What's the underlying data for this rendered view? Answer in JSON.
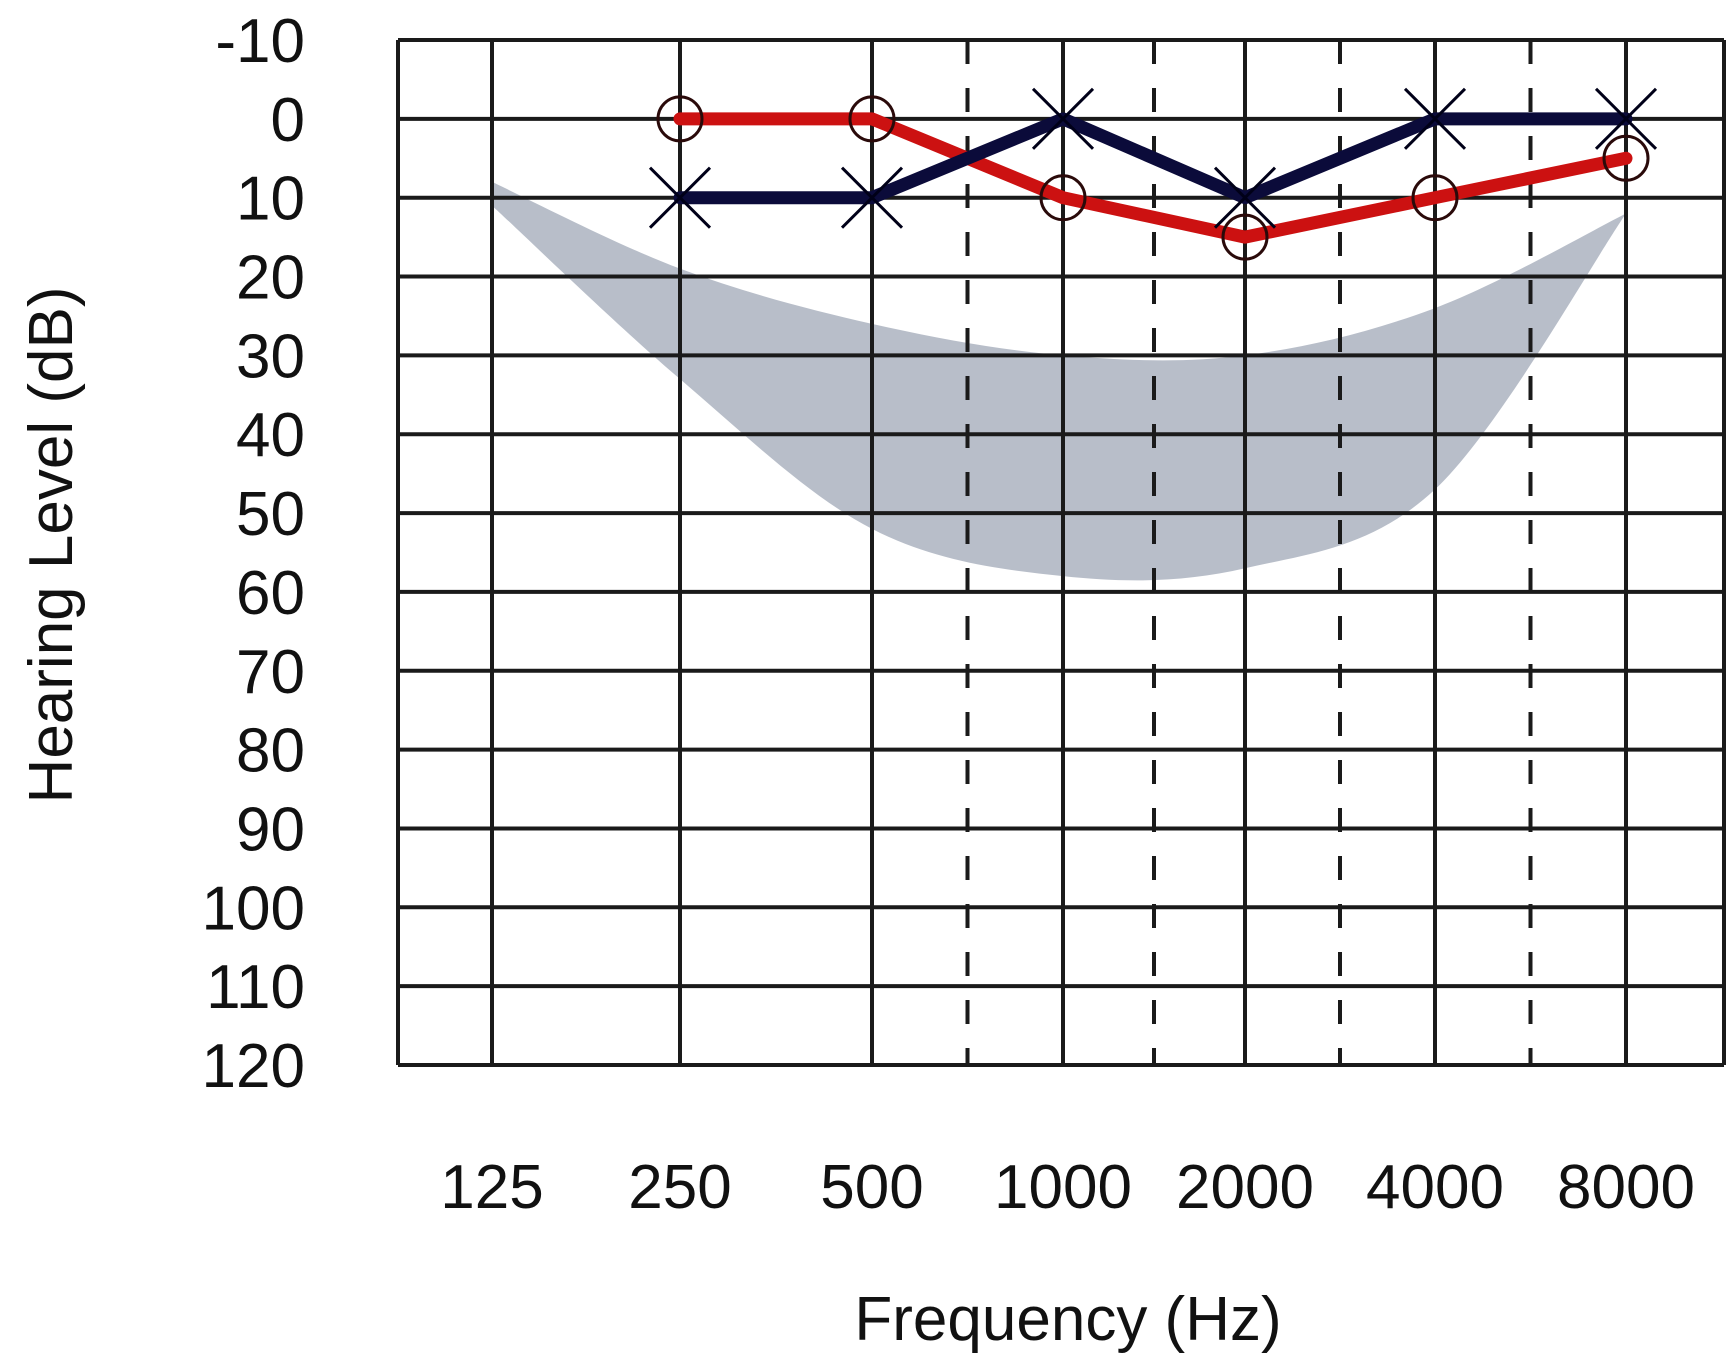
{
  "chart_data": {
    "type": "line",
    "xlabel": "Frequency (Hz)",
    "ylabel": "Hearing Level (dB)",
    "x_categories": [
      "125",
      "250",
      "500",
      "1000",
      "2000",
      "4000",
      "8000"
    ],
    "x_intermediate": [
      "750",
      "1500",
      "3000",
      "6000"
    ],
    "y_ticks": [
      "-10",
      "0",
      "10",
      "20",
      "30",
      "40",
      "50",
      "60",
      "70",
      "80",
      "90",
      "100",
      "110",
      "120"
    ],
    "ylim": [
      -10,
      120
    ],
    "y_inverted": true,
    "grid": true,
    "series": [
      {
        "marker": "circle",
        "color": "#cc1111",
        "points": [
          {
            "x": "250",
            "y": 0
          },
          {
            "x": "500",
            "y": 0
          },
          {
            "x": "1000",
            "y": 10
          },
          {
            "x": "2000",
            "y": 15
          },
          {
            "x": "4000",
            "y": 10
          },
          {
            "x": "8000",
            "y": 5
          }
        ]
      },
      {
        "marker": "x",
        "color": "#0b0b3a",
        "points": [
          {
            "x": "250",
            "y": 10
          },
          {
            "x": "500",
            "y": 10
          },
          {
            "x": "1000",
            "y": 0
          },
          {
            "x": "2000",
            "y": 10
          },
          {
            "x": "4000",
            "y": 0
          },
          {
            "x": "8000",
            "y": 0
          }
        ]
      }
    ],
    "shaded_region": {
      "color": "#b4bac6",
      "upper": [
        {
          "x": "125",
          "y": 8
        },
        {
          "x": "250",
          "y": 19
        },
        {
          "x": "500",
          "y": 26
        },
        {
          "x": "1000",
          "y": 30
        },
        {
          "x": "2000",
          "y": 30
        },
        {
          "x": "4000",
          "y": 24
        },
        {
          "x": "8000",
          "y": 12
        }
      ],
      "lower": [
        {
          "x": "125",
          "y": 11
        },
        {
          "x": "250",
          "y": 33
        },
        {
          "x": "500",
          "y": 52
        },
        {
          "x": "1000",
          "y": 58
        },
        {
          "x": "2000",
          "y": 57
        },
        {
          "x": "4000",
          "y": 47
        },
        {
          "x": "8000",
          "y": 12
        }
      ]
    }
  }
}
